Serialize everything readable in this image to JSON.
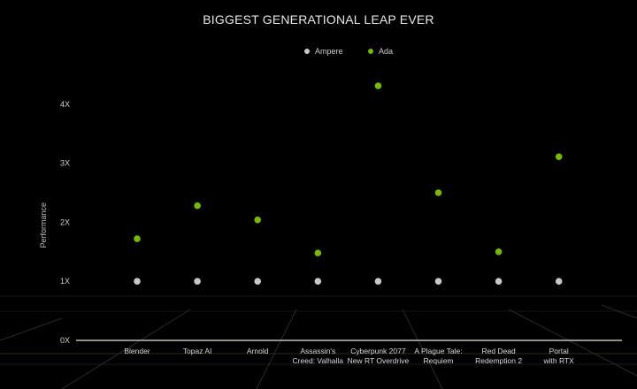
{
  "chart_data": {
    "type": "scatter",
    "title": "BIGGEST GENERATIONAL LEAP EVER",
    "xlabel": "",
    "ylabel": "Performance",
    "ylim": [
      0,
      4.5
    ],
    "yticks": [
      "0X",
      "1X",
      "2X",
      "3X",
      "4X"
    ],
    "grid": false,
    "legend": "top-center",
    "categories": [
      [
        "Blender"
      ],
      [
        "Topaz AI"
      ],
      [
        "Arnold"
      ],
      [
        "Assassin's",
        "Creed: Valhalla"
      ],
      [
        "Cyberpunk 2077",
        "New RT Overdrive"
      ],
      [
        "A Plague Tale:",
        "Requiem"
      ],
      [
        "Red Dead",
        "Redemption 2"
      ],
      [
        "Portal",
        "with RTX"
      ]
    ],
    "series": [
      {
        "name": "Ampere",
        "color": "#c8c8c8",
        "values": [
          1,
          1,
          1,
          1,
          1,
          1,
          1,
          1
        ]
      },
      {
        "name": "Ada",
        "color": "#76b900",
        "values": [
          1.72,
          2.28,
          2.04,
          1.48,
          4.31,
          2.5,
          1.5,
          3.11
        ]
      }
    ]
  }
}
